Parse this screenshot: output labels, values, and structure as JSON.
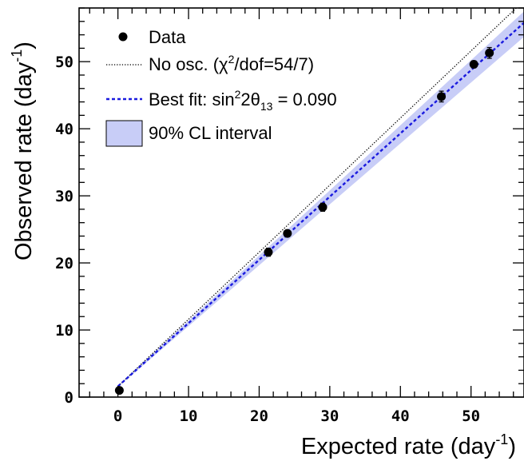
{
  "chart_data": {
    "type": "scatter",
    "xlabel": "Expected rate (day",
    "xlabel_sup": "-1",
    "xlabel_end": ")",
    "ylabel": "Observed rate (day",
    "ylabel_sup": "-1",
    "ylabel_end": ")",
    "xlim": [
      -5.5,
      57.5
    ],
    "ylim": [
      0,
      58
    ],
    "x_ticks": [
      0,
      10,
      20,
      30,
      40,
      50
    ],
    "y_ticks": [
      0,
      10,
      20,
      30,
      40,
      50
    ],
    "grid": false,
    "legend_position": "top-left",
    "series": [
      {
        "name": "Data",
        "kind": "points",
        "color": "#000000",
        "points": [
          {
            "x": 0.2,
            "y": 1.0,
            "err": 0.3
          },
          {
            "x": 21.3,
            "y": 21.6,
            "err": 0.6
          },
          {
            "x": 24.0,
            "y": 24.4,
            "err": 0.4
          },
          {
            "x": 29.0,
            "y": 28.3,
            "err": 0.6
          },
          {
            "x": 45.8,
            "y": 44.8,
            "err": 0.8
          },
          {
            "x": 50.4,
            "y": 49.6,
            "err": 0.5
          },
          {
            "x": 52.6,
            "y": 51.3,
            "err": 0.8
          }
        ]
      },
      {
        "name": "No osc.",
        "label_suffix": "/dof=54/7)",
        "label_chi": "χ",
        "label_sup": "2",
        "label_prefix": "No osc. (",
        "kind": "line",
        "style": "dotted",
        "color": "#000000",
        "x": [
          0,
          57.5
        ],
        "y": [
          1.6,
          59.1
        ]
      },
      {
        "name": "Best fit",
        "label_prefix": "Best fit: sin",
        "label_sup": "2",
        "label_mid": "2θ",
        "label_sub": "13",
        "label_suffix": " = 0.090",
        "kind": "line",
        "style": "dashed",
        "color": "#1a1adf",
        "x": [
          0,
          57.5
        ],
        "y": [
          1.6,
          55.8
        ]
      },
      {
        "name": "90% CL interval",
        "kind": "band",
        "color": "#c8cdf7",
        "x": [
          0,
          57.5
        ],
        "y_low": [
          1.5,
          53.7
        ],
        "y_high": [
          1.7,
          57.5
        ]
      }
    ]
  }
}
